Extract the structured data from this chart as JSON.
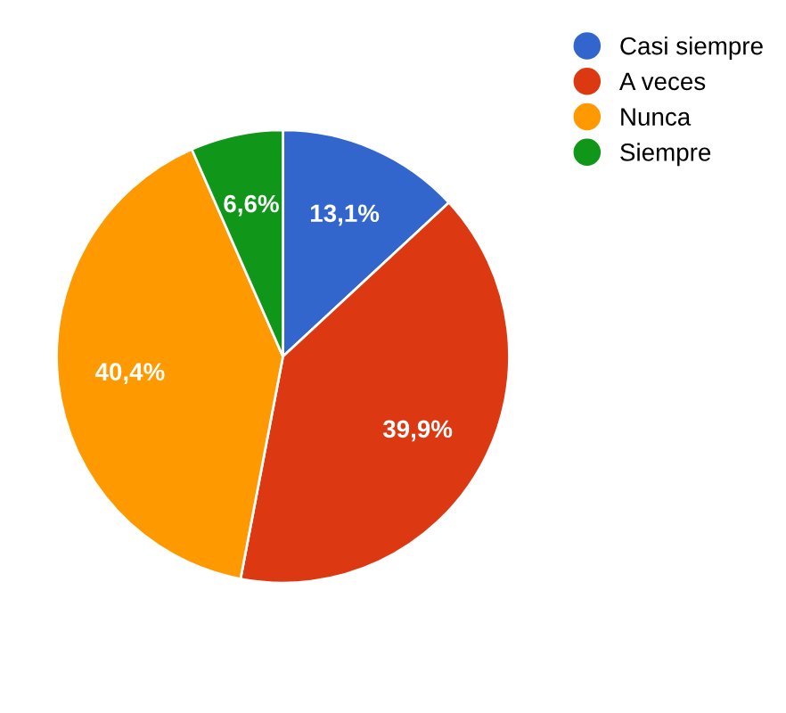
{
  "chart_data": {
    "type": "pie",
    "categories": [
      "Casi siempre",
      "A veces",
      "Nunca",
      "Siempre"
    ],
    "values": [
      13.1,
      39.9,
      40.4,
      6.6
    ],
    "colors": [
      "#3366cc",
      "#dc3912",
      "#ff9900",
      "#109618"
    ],
    "value_labels": [
      "13,1%",
      "39,9%",
      "40,4%",
      "6,6%"
    ],
    "legend": "top right"
  }
}
